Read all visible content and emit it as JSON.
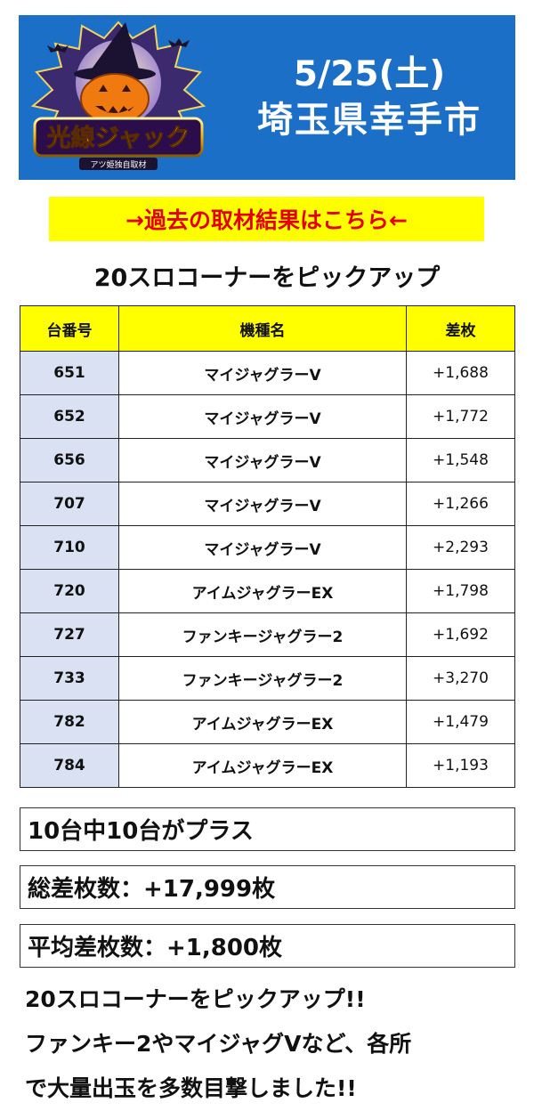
{
  "banner": {
    "logo_text": "光線ジャック",
    "logo_subtext": "アツ姫独自取材",
    "date": "5/25(土)",
    "place": "埼玉県幸手市",
    "bg_color": "#1b6fc6"
  },
  "past_link": {
    "label": "→過去の取材結果はこちら←",
    "bg_color": "#ffff00",
    "text_color": "#e50000"
  },
  "section_title": "20スロコーナーをピックアップ",
  "table": {
    "headers": [
      "台番号",
      "機種名",
      "差枚"
    ],
    "rows": [
      {
        "num": "651",
        "model": "マイジャグラーV",
        "diff": "+1,688"
      },
      {
        "num": "652",
        "model": "マイジャグラーV",
        "diff": "+1,772"
      },
      {
        "num": "656",
        "model": "マイジャグラーV",
        "diff": "+1,548"
      },
      {
        "num": "707",
        "model": "マイジャグラーV",
        "diff": "+1,266"
      },
      {
        "num": "710",
        "model": "マイジャグラーV",
        "diff": "+2,293"
      },
      {
        "num": "720",
        "model": "アイムジャグラーEX",
        "diff": "+1,798"
      },
      {
        "num": "727",
        "model": "ファンキージャグラー2",
        "diff": "+1,692"
      },
      {
        "num": "733",
        "model": "ファンキージャグラー2",
        "diff": "+3,270"
      },
      {
        "num": "782",
        "model": "アイムジャグラーEX",
        "diff": "+1,479"
      },
      {
        "num": "784",
        "model": "アイムジャグラーEX",
        "diff": "+1,193"
      }
    ]
  },
  "summary": {
    "plus_count": "10台中10台がプラス",
    "total": "総差枚数：+17,999枚",
    "average": "平均差枚数：+1,800枚"
  },
  "comment": {
    "line1": "20スロコーナーをピックアップ!!",
    "line2": "ファンキー2やマイジャグVなど、各所",
    "line3": "で大量出玉を多数目撃しました!!"
  }
}
